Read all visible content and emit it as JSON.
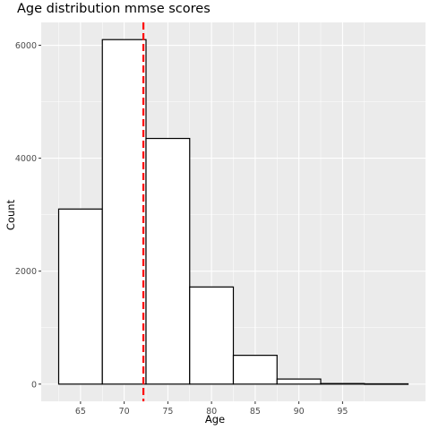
{
  "chart_data": {
    "type": "bar",
    "title": "Age distribution mmse scores",
    "xlabel": "Age",
    "ylabel": "Count",
    "bins": [
      {
        "x0": 62.5,
        "x1": 67.5,
        "count": 3100
      },
      {
        "x0": 67.5,
        "x1": 72.5,
        "count": 6100
      },
      {
        "x0": 72.5,
        "x1": 77.5,
        "count": 4350
      },
      {
        "x0": 77.5,
        "x1": 82.5,
        "count": 1720
      },
      {
        "x0": 82.5,
        "x1": 87.5,
        "count": 510
      },
      {
        "x0": 87.5,
        "x1": 92.5,
        "count": 90
      },
      {
        "x0": 92.5,
        "x1": 97.5,
        "count": 10
      },
      {
        "x0": 97.5,
        "x1": 102.5,
        "count": 5
      }
    ],
    "mean_line": {
      "x": 72.2,
      "color": "#ff0000",
      "style": "dashed"
    },
    "xlim": [
      60.5,
      104.5
    ],
    "ylim": [
      -305,
      6405
    ],
    "x_ticks": [
      65,
      70,
      75,
      80,
      85,
      90,
      95
    ],
    "y_ticks": [
      0,
      2000,
      4000,
      6000
    ],
    "grid": true,
    "colors": {
      "panel": "#ebebeb",
      "grid": "#ffffff",
      "bar_fill": "#ffffff",
      "bar_stroke": "#000000"
    }
  }
}
